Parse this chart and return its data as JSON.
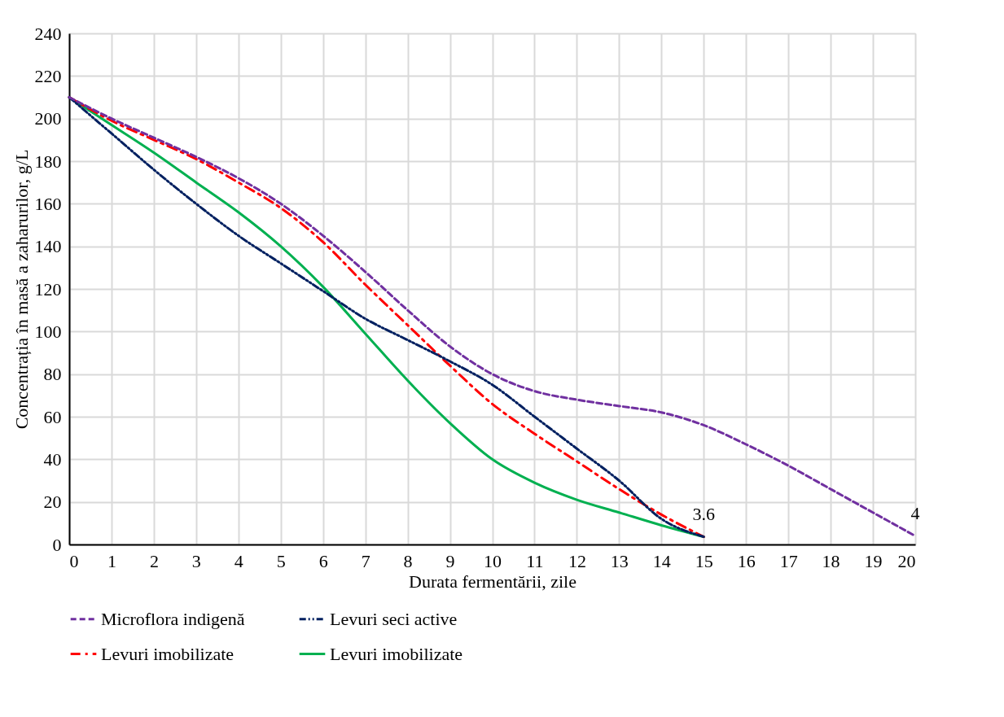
{
  "chart_data": {
    "type": "line",
    "xlabel": "Durata fermentării, zile",
    "ylabel": "Concentrația în masă a zaharurilor, g/L",
    "x": [
      0,
      1,
      2,
      3,
      4,
      5,
      6,
      7,
      8,
      9,
      10,
      11,
      12,
      13,
      14,
      15,
      16,
      17,
      18,
      19,
      20
    ],
    "series": [
      {
        "name": "Microflora indigenă",
        "color": "#7030a0",
        "line_style": "dashed",
        "values": [
          210,
          200,
          191,
          182,
          172,
          160,
          145,
          128,
          110,
          93,
          80,
          72,
          68,
          65,
          62,
          56,
          47,
          37,
          26,
          15,
          4
        ]
      },
      {
        "name": "Levuri seci active",
        "color": "#002060",
        "line_style": "dashdotdot",
        "x": [
          0,
          1,
          2,
          3,
          4,
          5,
          6,
          7,
          8,
          9,
          10,
          11,
          12,
          13,
          14,
          15
        ],
        "values": [
          210,
          193,
          176,
          160,
          145,
          132,
          119,
          106,
          96,
          86,
          75,
          60,
          45,
          30,
          12,
          3.6
        ]
      },
      {
        "name": "Levuri imobilizate",
        "color": "#ff0000",
        "line_style": "dashdot",
        "x": [
          0,
          1,
          2,
          3,
          4,
          5,
          6,
          7,
          8,
          9,
          10,
          11,
          12,
          13,
          14,
          15
        ],
        "values": [
          210,
          199,
          190,
          181,
          170,
          158,
          142,
          122,
          103,
          84,
          66,
          52,
          39,
          26,
          14,
          3.6
        ]
      },
      {
        "name": "Levuri imobilizate",
        "color": "#00b050",
        "line_style": "solid",
        "x": [
          0,
          1,
          2,
          3,
          4,
          5,
          6,
          7,
          8,
          9,
          10,
          11,
          12,
          13,
          14,
          15
        ],
        "values": [
          210,
          197,
          184,
          170,
          156,
          140,
          121,
          99,
          77,
          57,
          40,
          29,
          21,
          15,
          9,
          3.6
        ]
      }
    ],
    "xlim": [
      0,
      20
    ],
    "xticks": [
      0,
      1,
      2,
      3,
      4,
      5,
      6,
      7,
      8,
      9,
      10,
      11,
      12,
      13,
      14,
      15,
      16,
      17,
      18,
      19,
      20
    ],
    "ylim": [
      0,
      240
    ],
    "yticks": [
      0,
      20,
      40,
      60,
      80,
      100,
      120,
      140,
      160,
      180,
      200,
      220,
      240
    ],
    "grid": true,
    "legend": "bottom",
    "marker": "none",
    "annotations": [
      {
        "text": "3.6",
        "x": 15,
        "y": 3.6
      },
      {
        "text": "4",
        "x": 20,
        "y": 4
      }
    ]
  }
}
